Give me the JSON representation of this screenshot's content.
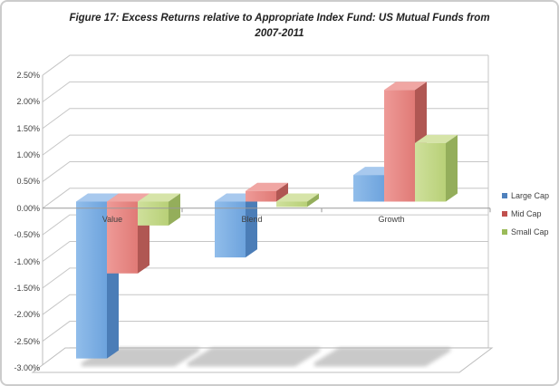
{
  "title": {
    "line1": "Figure 17: Excess Returns relative to Appropriate Index Fund: US Mutual Funds from",
    "line2": "2007-2011"
  },
  "chart_data": {
    "type": "bar",
    "projection": "3d-clustered-column",
    "title": "Figure 17: Excess Returns relative to Appropriate Index Fund: US Mutual Funds from 2007-2011",
    "categories": [
      "Value",
      "Blend",
      "Growth"
    ],
    "series": [
      {
        "name": "Large Cap",
        "values": [
          -2.95,
          -1.05,
          0.5
        ],
        "colors": {
          "front_light": "#91bdea",
          "front_dark": "#6da3dd",
          "side": "#4b7db7",
          "top": "#a8c9ee"
        }
      },
      {
        "name": "Mid Cap",
        "values": [
          -1.35,
          0.2,
          2.1
        ],
        "colors": {
          "front_light": "#ee9a97",
          "front_dark": "#e07a76",
          "side": "#b05753",
          "top": "#f0a6a3"
        }
      },
      {
        "name": "Small Cap",
        "values": [
          -0.45,
          -0.1,
          1.1
        ],
        "colors": {
          "front_light": "#cfe09c",
          "front_dark": "#b8d077",
          "side": "#94ae5b",
          "top": "#d6e4a8"
        }
      }
    ],
    "ylabel": "",
    "xlabel": "",
    "ylim": [
      -3.0,
      2.5
    ],
    "yticks": [
      2.5,
      2.0,
      1.5,
      1.0,
      0.5,
      0.0,
      -0.5,
      -1.0,
      -1.5,
      -2.0,
      -2.5,
      -3.0
    ],
    "yticklabels": [
      "2.50%",
      "2.00%",
      "1.50%",
      "1.00%",
      "0.50%",
      "0.00%",
      "-0.50%",
      "-1.00%",
      "-1.50%",
      "-2.00%",
      "-2.50%",
      "-3.00%"
    ],
    "grid": true,
    "legend_position": "right",
    "floor_shadows": true
  },
  "legend": {
    "items": [
      {
        "label": "Large Cap",
        "color": "#4f81bd"
      },
      {
        "label": "Mid Cap",
        "color": "#c0504d"
      },
      {
        "label": "Small Cap",
        "color": "#9bbb59"
      }
    ]
  },
  "colors": {
    "gridline": "#c6c6c6",
    "axis": "#9a9a9a",
    "wall_edge": "#bdbdbd",
    "shadow": "#9e9e9e",
    "text": "#3f3f3f",
    "border": "#cccccc"
  }
}
